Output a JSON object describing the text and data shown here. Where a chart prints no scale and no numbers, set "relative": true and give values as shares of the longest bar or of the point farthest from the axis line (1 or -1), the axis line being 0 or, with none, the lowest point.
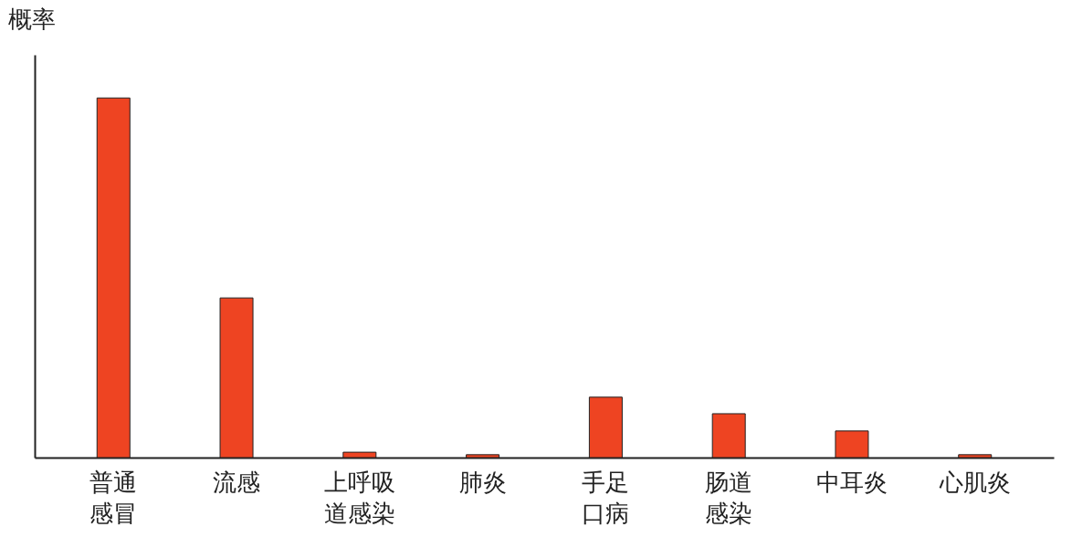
{
  "chart_data": {
    "type": "bar",
    "relative": true,
    "ylabel": "概率",
    "color": "#ee4422",
    "categories": [
      "普通感冒",
      "流感",
      "上呼吸道感染",
      "肺炎",
      "手足口病",
      "肠道感染",
      "中耳炎",
      "心肌炎"
    ],
    "values": [
      1,
      0.444,
      0.015,
      0.008,
      0.168,
      0.122,
      0.074,
      0.008
    ],
    "grid": false
  }
}
